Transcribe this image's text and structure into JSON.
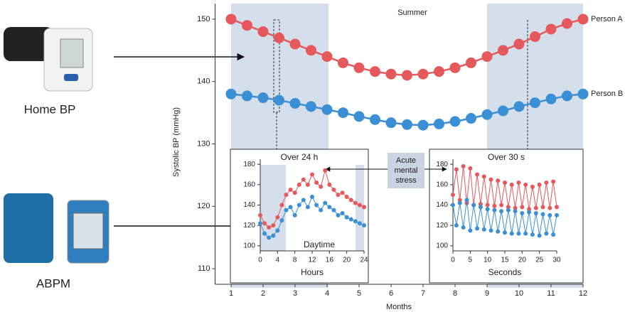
{
  "devices": [
    "Home BP",
    "ABPM"
  ],
  "stress_label": [
    "Acute",
    "mental",
    "stress"
  ],
  "chart_data": [
    {
      "type": "line",
      "title": "Summer",
      "xlabel": "Months",
      "ylabel": "Systolic BP (mmHg)",
      "x": [
        1,
        1.5,
        2,
        2.5,
        3,
        3.5,
        4,
        4.5,
        5,
        5.5,
        6,
        6.5,
        7,
        7.5,
        8,
        8.5,
        9,
        9.5,
        10,
        10.5,
        11,
        11.5,
        12
      ],
      "series": [
        {
          "name": "Person A",
          "color": "#e5585b",
          "values": [
            150,
            149,
            148,
            147,
            146,
            145,
            144,
            143,
            142.2,
            141.6,
            141.2,
            141,
            141.2,
            141.6,
            142.2,
            143,
            144,
            145,
            146,
            147.2,
            148.4,
            149.3,
            150
          ]
        },
        {
          "name": "Person B",
          "color": "#3b8fd4",
          "values": [
            138,
            137.7,
            137.4,
            137,
            136.5,
            136,
            135.5,
            135,
            134.4,
            133.9,
            133.4,
            133.1,
            133,
            133.2,
            133.6,
            134.1,
            134.7,
            135.3,
            136,
            136.6,
            137.2,
            137.7,
            138
          ]
        }
      ],
      "xlim": [
        0.5,
        12
      ],
      "ylim": [
        107.5,
        152.5
      ],
      "xticks": [
        1,
        2,
        3,
        4,
        5,
        6,
        7,
        8,
        9,
        10,
        11,
        12
      ],
      "yticks": [
        110,
        120,
        130,
        140,
        150
      ]
    },
    {
      "type": "line",
      "title": "Over 24 h",
      "xlabel": "Hours",
      "annotation": "Daytime",
      "x": [
        0,
        1,
        2,
        3,
        4,
        5,
        6,
        7,
        8,
        9,
        10,
        11,
        12,
        13,
        14,
        15,
        16,
        17,
        18,
        19,
        20,
        21,
        22,
        23,
        24
      ],
      "series": [
        {
          "color": "#e5585b",
          "values": [
            130,
            122,
            118,
            120,
            128,
            140,
            150,
            155,
            152,
            160,
            165,
            160,
            170,
            162,
            158,
            174,
            160,
            155,
            150,
            152,
            148,
            145,
            142,
            140,
            138
          ]
        },
        {
          "color": "#3b8fd4",
          "values": [
            122,
            112,
            108,
            110,
            115,
            125,
            135,
            138,
            130,
            140,
            145,
            138,
            148,
            140,
            135,
            142,
            138,
            135,
            130,
            132,
            128,
            126,
            124,
            122,
            120
          ]
        }
      ],
      "xlim": [
        0,
        24
      ],
      "ylim": [
        95,
        185
      ],
      "xticks": [
        0,
        4,
        8,
        12,
        16,
        20,
        24
      ],
      "yticks": [
        100,
        120,
        140,
        160,
        180
      ]
    },
    {
      "type": "line",
      "title": "Over 30 s",
      "xlabel": "Seconds",
      "x": [
        0,
        1,
        2,
        3,
        4,
        5,
        6,
        7,
        8,
        9,
        10,
        11,
        12,
        13,
        14,
        15,
        16,
        17,
        18,
        19,
        20,
        21,
        22,
        23,
        24,
        25,
        26,
        27,
        28,
        29,
        30
      ],
      "series": [
        {
          "color": "#e5585b",
          "values": [
            150,
            175,
            145,
            178,
            142,
            176,
            140,
            170,
            141,
            168,
            140,
            165,
            139,
            164,
            140,
            162,
            138,
            160,
            137,
            162,
            138,
            160,
            136,
            158,
            137,
            160,
            138,
            162,
            137,
            163,
            138
          ]
        },
        {
          "color": "#3b8fd4",
          "values": [
            140,
            120,
            142,
            118,
            145,
            115,
            140,
            117,
            138,
            116,
            136,
            115,
            135,
            114,
            134,
            113,
            135,
            112,
            134,
            112,
            132,
            112,
            133,
            111,
            132,
            110,
            131,
            112,
            130,
            111,
            130
          ]
        }
      ],
      "xlim": [
        0,
        30
      ],
      "ylim": [
        95,
        185
      ],
      "xticks": [
        0,
        5,
        10,
        15,
        20,
        25,
        30
      ],
      "yticks": [
        100,
        120,
        140,
        160,
        180
      ]
    }
  ]
}
